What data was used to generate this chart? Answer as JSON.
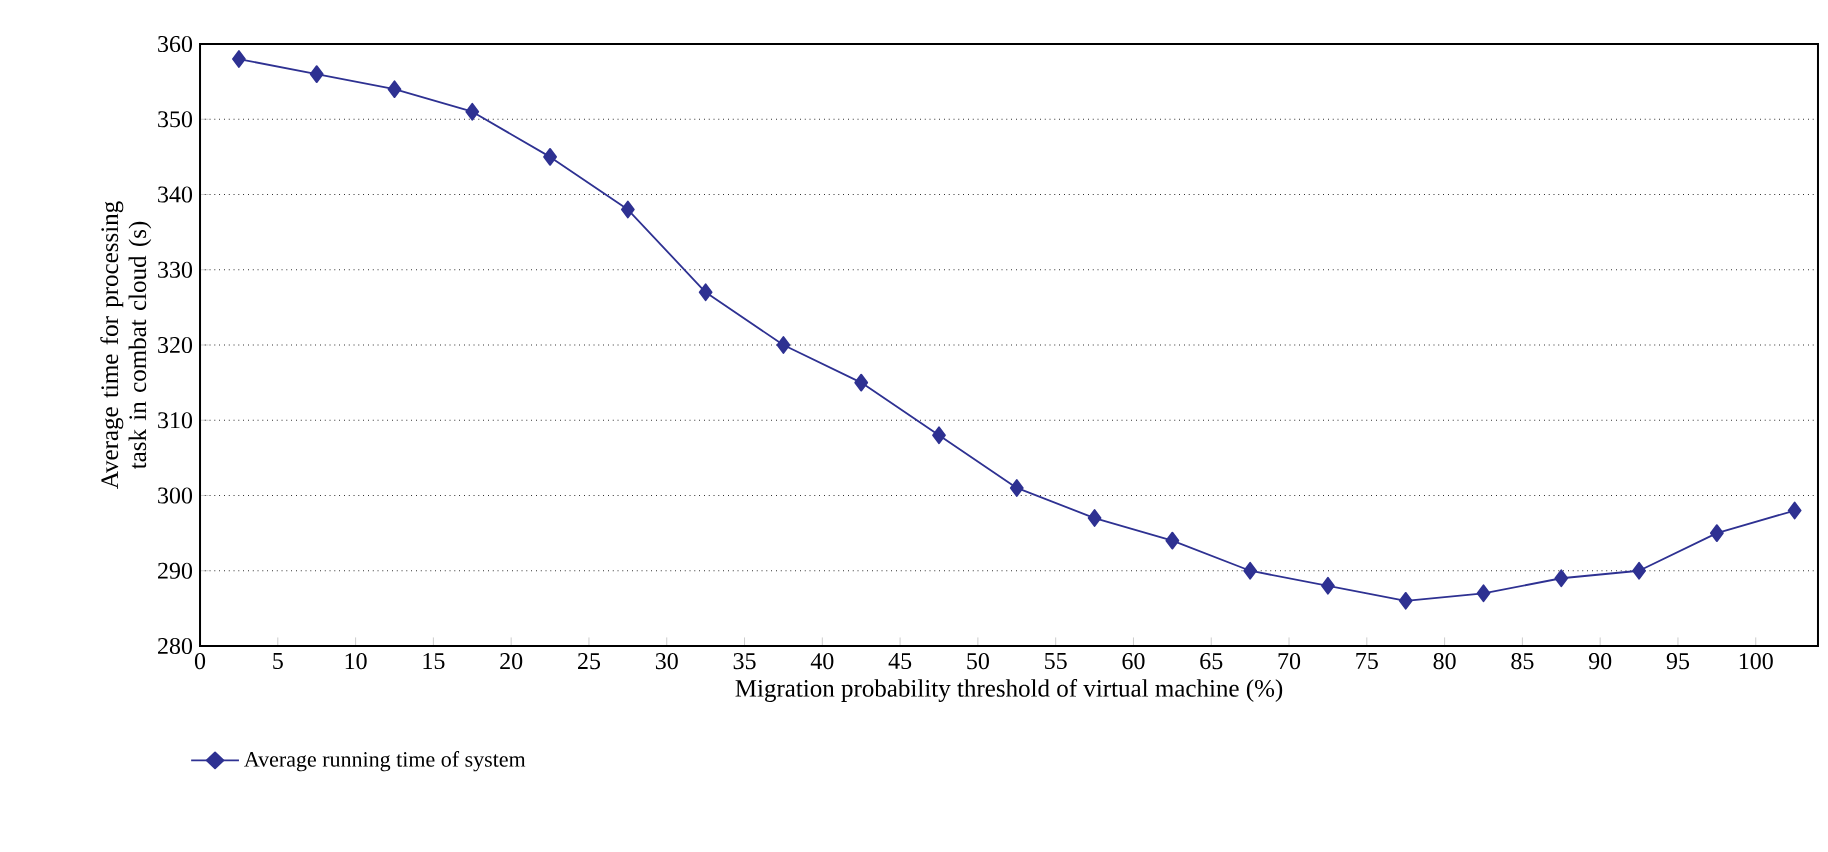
{
  "chart_data": {
    "type": "line",
    "xlabel": "Migration probability threshold of virtual machine (%)",
    "ylabel": "Average time for processing task in combat cloud (s)",
    "x": [
      2.5,
      7.5,
      12.5,
      17.5,
      22.5,
      27.5,
      32.5,
      37.5,
      42.5,
      47.5,
      52.5,
      57.5,
      62.5,
      67.5,
      72.5,
      77.5,
      82.5,
      87.5,
      92.5,
      97.5,
      102.5
    ],
    "series": [
      {
        "name": "Average running time of system",
        "color": "#2e3192",
        "values": [
          358,
          356,
          354,
          351,
          345,
          338,
          327,
          320,
          315,
          308,
          301,
          297,
          294,
          290,
          288,
          286,
          287,
          289,
          290,
          295,
          298
        ]
      }
    ],
    "xlim": [
      0,
      104
    ],
    "xticks": [
      0,
      5,
      10,
      15,
      20,
      25,
      30,
      35,
      40,
      45,
      50,
      55,
      60,
      65,
      70,
      75,
      80,
      85,
      90,
      95,
      100
    ],
    "ylim": [
      280,
      360
    ],
    "yticks": [
      280,
      290,
      300,
      310,
      320,
      330,
      340,
      350,
      360
    ],
    "grid": "y",
    "legend": "bottom left",
    "marker": "diamond",
    "line_style": "solid"
  }
}
